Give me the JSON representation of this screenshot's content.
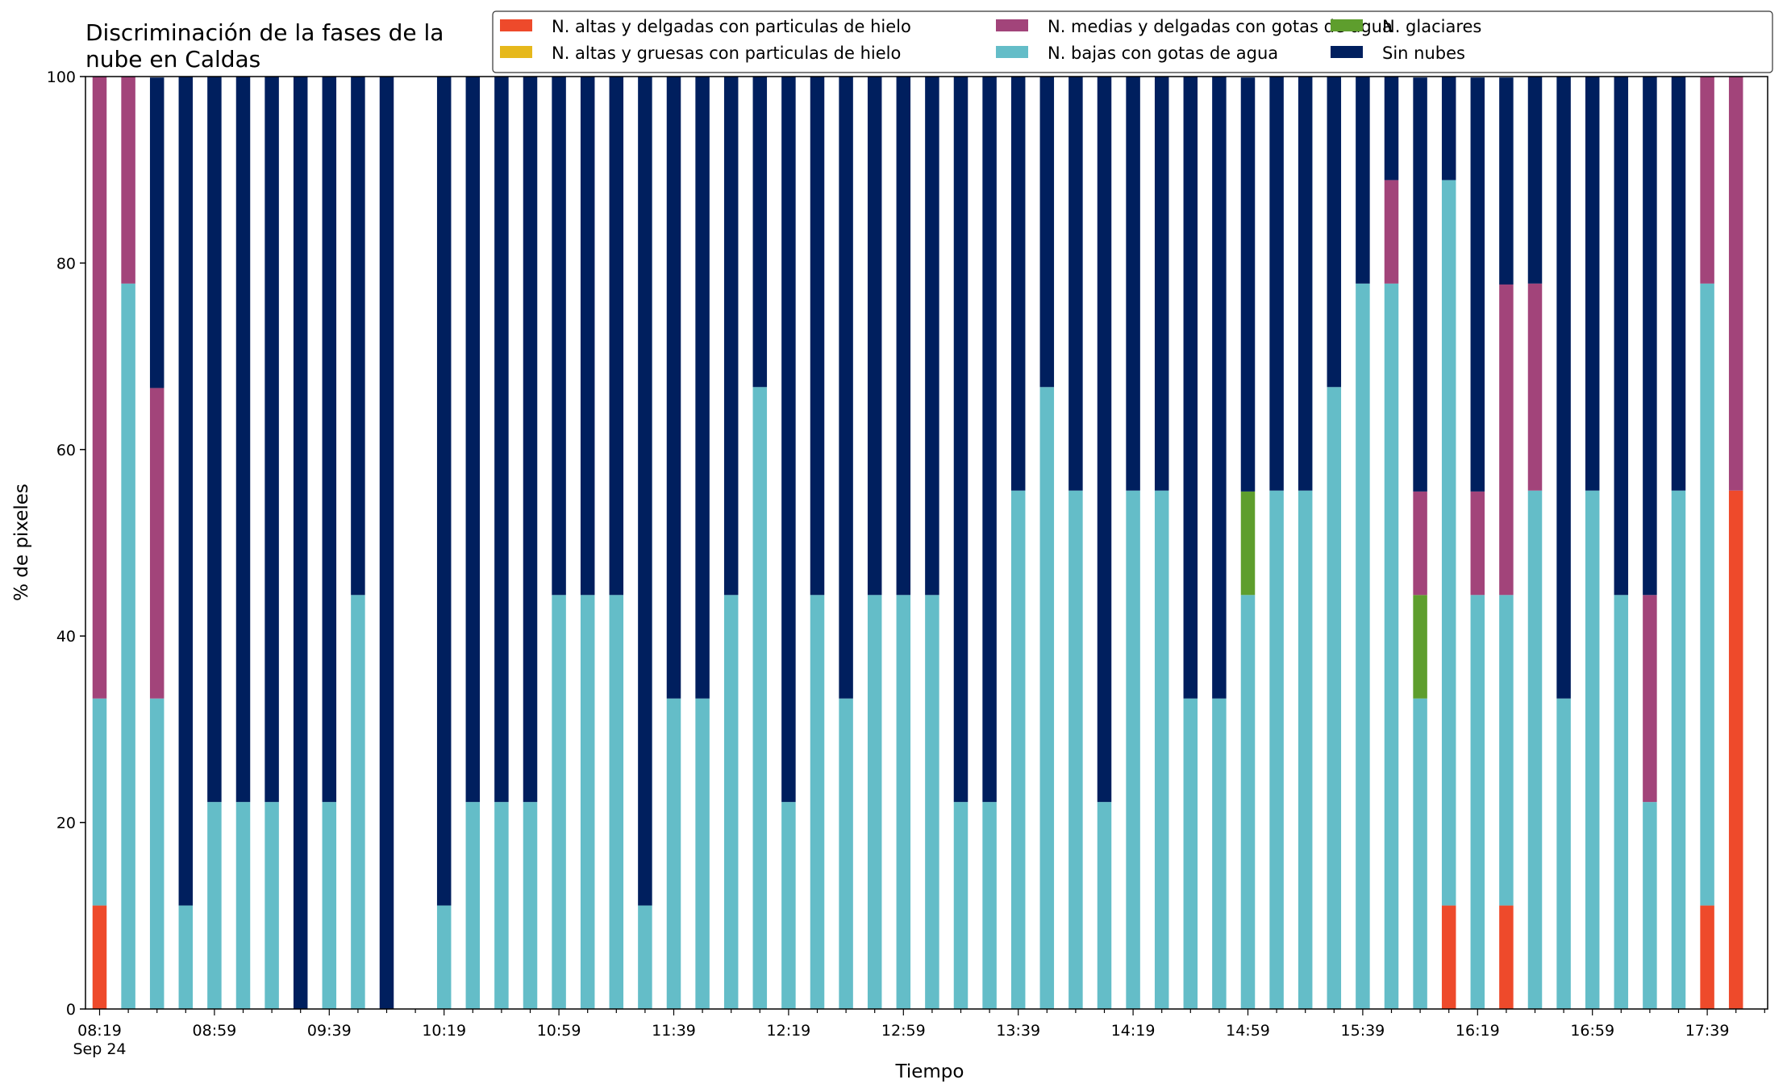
{
  "chart_data": {
    "type": "bar",
    "stacked": true,
    "title_lines": [
      "Discriminación de la fases de la",
      "nube en Caldas"
    ],
    "xlabel": "Tiempo",
    "ylabel": "% de pixeles",
    "ylim": [
      0,
      100
    ],
    "yticks": [
      "0",
      "20",
      "40",
      "60",
      "80",
      "100"
    ],
    "xtick_labels": [
      {
        "label": "08:19",
        "sub": "Sep 24"
      },
      {
        "label": "08:59",
        "sub": ""
      },
      {
        "label": "09:39",
        "sub": ""
      },
      {
        "label": "10:19",
        "sub": ""
      },
      {
        "label": "10:59",
        "sub": ""
      },
      {
        "label": "11:39",
        "sub": ""
      },
      {
        "label": "12:19",
        "sub": ""
      },
      {
        "label": "12:59",
        "sub": ""
      },
      {
        "label": "13:39",
        "sub": ""
      },
      {
        "label": "14:19",
        "sub": ""
      },
      {
        "label": "14:59",
        "sub": ""
      },
      {
        "label": "15:39",
        "sub": ""
      },
      {
        "label": "16:19",
        "sub": ""
      },
      {
        "label": "16:59",
        "sub": ""
      },
      {
        "label": "17:39",
        "sub": ""
      }
    ],
    "categories": [
      "08:19",
      "08:29",
      "08:39",
      "08:49",
      "08:59",
      "09:09",
      "09:19",
      "09:29",
      "09:39",
      "09:49",
      "09:59",
      "10:09",
      "10:19",
      "10:29",
      "10:39",
      "10:49",
      "10:59",
      "11:09",
      "11:19",
      "11:29",
      "11:39",
      "11:49",
      "11:59",
      "12:09",
      "12:19",
      "12:29",
      "12:39",
      "12:49",
      "12:59",
      "13:09",
      "13:19",
      "13:29",
      "13:39",
      "13:49",
      "13:59",
      "14:09",
      "14:19",
      "14:29",
      "14:39",
      "14:49",
      "14:59",
      "15:09",
      "15:19",
      "15:29",
      "15:39",
      "15:49",
      "15:59",
      "16:09",
      "16:19",
      "16:29",
      "16:39",
      "16:49",
      "16:59",
      "17:09",
      "17:19",
      "17:29",
      "17:39",
      "17:49"
    ],
    "legend_position": "top-right",
    "legend_order": [
      0,
      1,
      4,
      2,
      3,
      5
    ],
    "series": [
      {
        "name": "N. altas y delgadas con particulas de hielo",
        "color": "#ee4a2b",
        "values": [
          11.1,
          0,
          0,
          0,
          0,
          0,
          0,
          0,
          0,
          0,
          0,
          0,
          0,
          0,
          0,
          0,
          0,
          0,
          0,
          0,
          0,
          0,
          0,
          0,
          0,
          0,
          0,
          0,
          0,
          0,
          0,
          0,
          0,
          0,
          0,
          0,
          0,
          0,
          0,
          0,
          0,
          0,
          0,
          0,
          0,
          0,
          0,
          11.1,
          0,
          11.1,
          0,
          0,
          0,
          0,
          0,
          0,
          11.1,
          55.6
        ]
      },
      {
        "name": "N. altas y gruesas con particulas de hielo",
        "color": "#e6b81b",
        "values": [
          0,
          0,
          0,
          0,
          0,
          0,
          0,
          0,
          0,
          0,
          0,
          0,
          0,
          0,
          0,
          0,
          0,
          0,
          0,
          0,
          0,
          0,
          0,
          0,
          0,
          0,
          0,
          0,
          0,
          0,
          0,
          0,
          0,
          0,
          0,
          0,
          0,
          0,
          0,
          0,
          0,
          0,
          0,
          0,
          0,
          0,
          0,
          0,
          0,
          0,
          0,
          0,
          0,
          0,
          0,
          0,
          0,
          0
        ]
      },
      {
        "name": "N. bajas con gotas de agua",
        "color": "#64bdc8",
        "values": [
          22.2,
          77.8,
          33.3,
          11.1,
          22.2,
          22.2,
          22.2,
          0,
          22.2,
          44.4,
          0,
          null,
          11.1,
          22.2,
          22.2,
          22.2,
          44.4,
          44.4,
          44.4,
          11.1,
          33.3,
          33.3,
          44.4,
          66.7,
          22.2,
          44.4,
          33.3,
          44.4,
          44.4,
          44.4,
          22.2,
          22.2,
          55.6,
          66.7,
          55.6,
          22.2,
          55.6,
          55.6,
          33.3,
          33.3,
          44.4,
          55.6,
          55.6,
          66.7,
          77.8,
          77.8,
          33.3,
          77.8,
          44.4,
          33.3,
          55.6,
          33.3,
          55.6,
          44.4,
          22.2,
          55.6,
          66.7,
          0
        ]
      },
      {
        "name": "N. glaciares",
        "color": "#5e9e2d",
        "values": [
          0,
          0,
          0,
          0,
          0,
          0,
          0,
          0,
          0,
          0,
          0,
          null,
          0,
          0,
          0,
          0,
          0,
          0,
          0,
          0,
          0,
          0,
          0,
          0,
          0,
          0,
          0,
          0,
          0,
          0,
          0,
          0,
          0,
          0,
          0,
          0,
          0,
          0,
          0,
          0,
          11.1,
          0,
          0,
          0,
          0,
          0,
          11.1,
          0,
          0,
          0,
          0,
          0,
          0,
          0,
          0,
          0,
          0,
          0
        ]
      },
      {
        "name": "N. medias y delgadas con gotas de agua",
        "color": "#a2447a",
        "values": [
          66.7,
          22.2,
          33.3,
          0,
          0,
          0,
          0,
          0,
          0,
          0,
          0,
          null,
          0,
          0,
          0,
          0,
          0,
          0,
          0,
          0,
          0,
          0,
          0,
          0,
          0,
          0,
          0,
          0,
          0,
          0,
          0,
          0,
          0,
          0,
          0,
          0,
          0,
          0,
          0,
          0,
          0,
          0,
          0,
          0,
          0,
          11.1,
          11.1,
          0,
          11.1,
          33.3,
          22.2,
          0,
          0,
          0,
          22.2,
          0,
          22.2,
          44.4
        ]
      },
      {
        "name": "Sin nubes",
        "color": "#001f5e",
        "values": [
          0,
          0,
          33.3,
          88.9,
          77.8,
          77.8,
          77.8,
          100,
          77.8,
          55.6,
          100,
          null,
          88.9,
          77.8,
          77.8,
          77.8,
          55.6,
          55.6,
          55.6,
          88.9,
          66.7,
          66.7,
          55.6,
          33.3,
          77.8,
          55.6,
          66.7,
          55.6,
          55.6,
          55.6,
          77.8,
          77.8,
          44.4,
          33.3,
          44.4,
          77.8,
          44.4,
          44.4,
          66.7,
          66.7,
          44.4,
          44.4,
          44.4,
          33.3,
          22.2,
          11.1,
          44.4,
          11.1,
          44.4,
          22.2,
          22.2,
          66.7,
          44.4,
          55.6,
          55.6,
          44.4,
          0,
          0
        ]
      }
    ]
  }
}
